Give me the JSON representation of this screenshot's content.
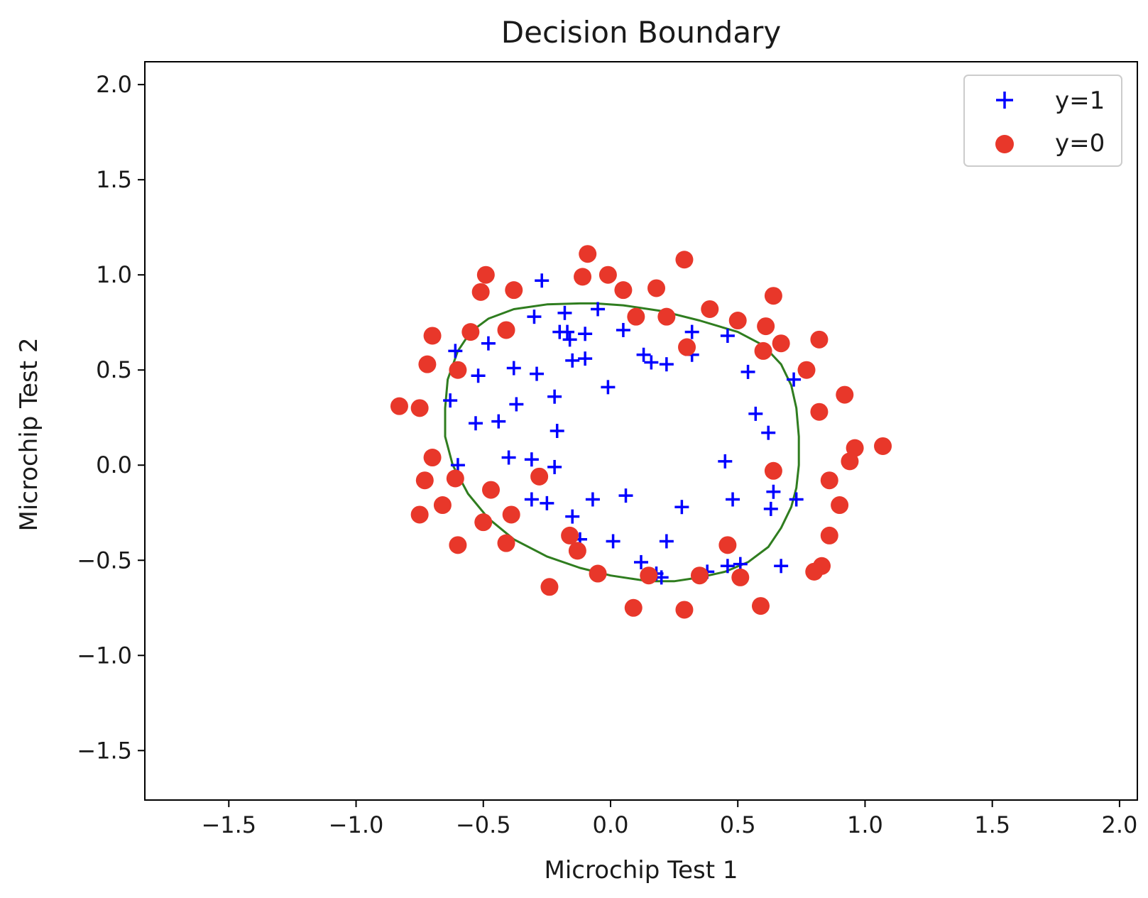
{
  "chart_data": {
    "type": "scatter",
    "title": "Decision Boundary",
    "xlabel": "Microchip Test 1",
    "ylabel": "Microchip Test 2",
    "xlim": [
      -1.83,
      2.07
    ],
    "ylim": [
      -1.76,
      2.12
    ],
    "xticks": [
      -1.5,
      -1.0,
      -0.5,
      0.0,
      0.5,
      1.0,
      1.5,
      2.0
    ],
    "yticks": [
      -1.5,
      -1.0,
      -0.5,
      0.0,
      0.5,
      1.0,
      1.5,
      2.0
    ],
    "xtick_labels": [
      "−1.5",
      "−1.0",
      "−0.5",
      "0.0",
      "0.5",
      "1.0",
      "1.5",
      "2.0"
    ],
    "ytick_labels": [
      "−1.5",
      "−1.0",
      "−0.5",
      "0.0",
      "0.5",
      "1.0",
      "1.5",
      "2.0"
    ],
    "grid": false,
    "legend_position": "top-right",
    "series": [
      {
        "name": "y=1",
        "marker": "plus",
        "color": "#0000ff",
        "points": [
          [
            -0.27,
            0.97
          ],
          [
            -0.3,
            0.78
          ],
          [
            -0.18,
            0.8
          ],
          [
            -0.05,
            0.82
          ],
          [
            -0.2,
            0.7
          ],
          [
            -0.17,
            0.7
          ],
          [
            -0.16,
            0.66
          ],
          [
            -0.1,
            0.69
          ],
          [
            0.05,
            0.71
          ],
          [
            0.32,
            0.7
          ],
          [
            0.46,
            0.68
          ],
          [
            -0.61,
            0.6
          ],
          [
            -0.48,
            0.64
          ],
          [
            -0.15,
            0.55
          ],
          [
            -0.1,
            0.56
          ],
          [
            0.13,
            0.58
          ],
          [
            0.16,
            0.54
          ],
          [
            0.22,
            0.53
          ],
          [
            0.32,
            0.58
          ],
          [
            -0.52,
            0.47
          ],
          [
            -0.38,
            0.51
          ],
          [
            -0.29,
            0.48
          ],
          [
            -0.01,
            0.41
          ],
          [
            0.54,
            0.49
          ],
          [
            0.72,
            0.45
          ],
          [
            -0.63,
            0.34
          ],
          [
            -0.37,
            0.32
          ],
          [
            -0.22,
            0.36
          ],
          [
            -0.53,
            0.22
          ],
          [
            -0.44,
            0.23
          ],
          [
            -0.21,
            0.18
          ],
          [
            0.57,
            0.27
          ],
          [
            0.62,
            0.17
          ],
          [
            -0.6,
            0.0
          ],
          [
            -0.4,
            0.04
          ],
          [
            -0.31,
            0.03
          ],
          [
            -0.22,
            -0.01
          ],
          [
            0.45,
            0.02
          ],
          [
            0.64,
            -0.14
          ],
          [
            -0.31,
            -0.18
          ],
          [
            -0.25,
            -0.2
          ],
          [
            -0.07,
            -0.18
          ],
          [
            0.06,
            -0.16
          ],
          [
            0.28,
            -0.22
          ],
          [
            0.48,
            -0.18
          ],
          [
            0.63,
            -0.23
          ],
          [
            0.73,
            -0.18
          ],
          [
            -0.15,
            -0.27
          ],
          [
            -0.12,
            -0.39
          ],
          [
            0.01,
            -0.4
          ],
          [
            0.22,
            -0.4
          ],
          [
            0.12,
            -0.51
          ],
          [
            0.18,
            -0.57
          ],
          [
            0.2,
            -0.59
          ],
          [
            0.38,
            -0.56
          ],
          [
            0.46,
            -0.53
          ],
          [
            0.51,
            -0.52
          ],
          [
            0.67,
            -0.53
          ]
        ]
      },
      {
        "name": "y=0",
        "marker": "circle",
        "color": "#e8372a",
        "points": [
          [
            -0.09,
            1.11
          ],
          [
            0.29,
            1.08
          ],
          [
            -0.49,
            1.0
          ],
          [
            -0.11,
            0.99
          ],
          [
            -0.01,
            1.0
          ],
          [
            -0.51,
            0.91
          ],
          [
            -0.38,
            0.92
          ],
          [
            0.05,
            0.92
          ],
          [
            0.18,
            0.93
          ],
          [
            0.64,
            0.89
          ],
          [
            0.39,
            0.82
          ],
          [
            0.1,
            0.78
          ],
          [
            0.22,
            0.78
          ],
          [
            0.5,
            0.76
          ],
          [
            0.61,
            0.73
          ],
          [
            -0.55,
            0.7
          ],
          [
            -0.41,
            0.71
          ],
          [
            -0.7,
            0.68
          ],
          [
            0.82,
            0.66
          ],
          [
            0.67,
            0.64
          ],
          [
            0.3,
            0.62
          ],
          [
            0.6,
            0.6
          ],
          [
            -0.72,
            0.53
          ],
          [
            -0.6,
            0.5
          ],
          [
            0.77,
            0.5
          ],
          [
            0.92,
            0.37
          ],
          [
            -0.83,
            0.31
          ],
          [
            -0.75,
            0.3
          ],
          [
            0.82,
            0.28
          ],
          [
            1.07,
            0.1
          ],
          [
            0.96,
            0.09
          ],
          [
            0.94,
            0.02
          ],
          [
            -0.7,
            0.04
          ],
          [
            0.64,
            -0.03
          ],
          [
            -0.28,
            -0.06
          ],
          [
            -0.61,
            -0.07
          ],
          [
            -0.73,
            -0.08
          ],
          [
            0.86,
            -0.08
          ],
          [
            -0.47,
            -0.13
          ],
          [
            -0.66,
            -0.21
          ],
          [
            0.9,
            -0.21
          ],
          [
            -0.75,
            -0.26
          ],
          [
            -0.39,
            -0.26
          ],
          [
            -0.5,
            -0.3
          ],
          [
            -0.16,
            -0.37
          ],
          [
            0.86,
            -0.37
          ],
          [
            -0.41,
            -0.41
          ],
          [
            -0.6,
            -0.42
          ],
          [
            0.46,
            -0.42
          ],
          [
            -0.13,
            -0.45
          ],
          [
            0.83,
            -0.53
          ],
          [
            0.8,
            -0.56
          ],
          [
            -0.05,
            -0.57
          ],
          [
            0.15,
            -0.58
          ],
          [
            0.35,
            -0.58
          ],
          [
            0.51,
            -0.59
          ],
          [
            -0.24,
            -0.64
          ],
          [
            0.59,
            -0.74
          ],
          [
            0.09,
            -0.75
          ],
          [
            0.29,
            -0.76
          ]
        ]
      }
    ],
    "boundary": {
      "color": "#2f7d1f",
      "points": [
        [
          -0.06,
          0.85
        ],
        [
          0.05,
          0.84
        ],
        [
          0.2,
          0.81
        ],
        [
          0.35,
          0.76
        ],
        [
          0.5,
          0.7
        ],
        [
          0.6,
          0.63
        ],
        [
          0.67,
          0.53
        ],
        [
          0.71,
          0.42
        ],
        [
          0.73,
          0.3
        ],
        [
          0.74,
          0.15
        ],
        [
          0.74,
          0.0
        ],
        [
          0.73,
          -0.12
        ],
        [
          0.71,
          -0.22
        ],
        [
          0.67,
          -0.33
        ],
        [
          0.62,
          -0.43
        ],
        [
          0.54,
          -0.51
        ],
        [
          0.45,
          -0.56
        ],
        [
          0.35,
          -0.59
        ],
        [
          0.25,
          -0.61
        ],
        [
          0.15,
          -0.61
        ],
        [
          0.0,
          -0.58
        ],
        [
          -0.12,
          -0.54
        ],
        [
          -0.25,
          -0.48
        ],
        [
          -0.38,
          -0.39
        ],
        [
          -0.48,
          -0.28
        ],
        [
          -0.56,
          -0.15
        ],
        [
          -0.62,
          0.0
        ],
        [
          -0.65,
          0.15
        ],
        [
          -0.65,
          0.3
        ],
        [
          -0.64,
          0.45
        ],
        [
          -0.6,
          0.6
        ],
        [
          -0.55,
          0.7
        ],
        [
          -0.48,
          0.77
        ],
        [
          -0.38,
          0.82
        ],
        [
          -0.25,
          0.845
        ],
        [
          -0.12,
          0.85
        ],
        [
          -0.06,
          0.85
        ]
      ]
    }
  }
}
